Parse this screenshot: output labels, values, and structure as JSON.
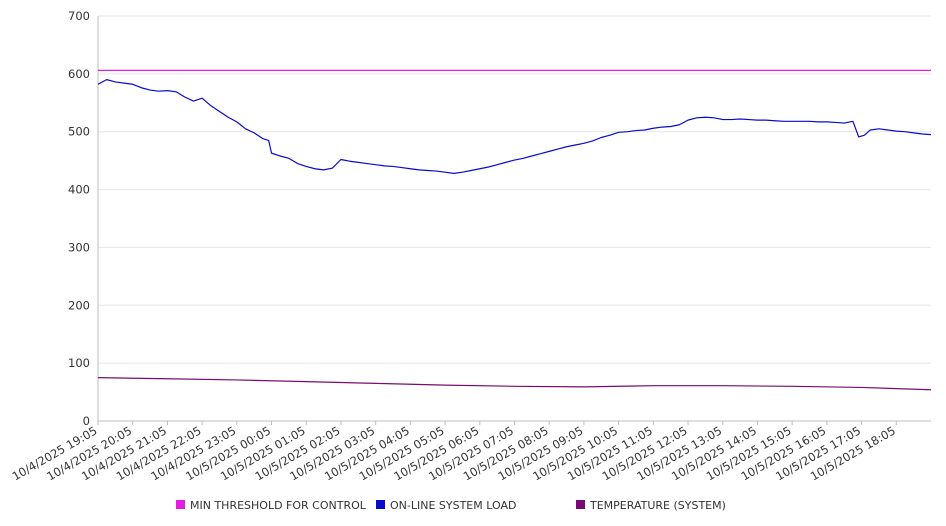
{
  "chart_data": {
    "type": "line",
    "ylim": [
      0,
      700
    ],
    "yticks": [
      0,
      100,
      200,
      300,
      400,
      500,
      600,
      700
    ],
    "grid": true,
    "legend_position": "bottom",
    "xlim": [
      "10/4/2025 19:05",
      "10/5/2025 19:05"
    ],
    "xtick_labels": [
      "10/4/2025 19:05",
      "10/4/2025 20:05",
      "10/4/2025 21:05",
      "10/4/2025 22:05",
      "10/4/2025 23:05",
      "10/5/2025 00:05",
      "10/5/2025 01:05",
      "10/5/2025 02:05",
      "10/5/2025 03:05",
      "10/5/2025 04:05",
      "10/5/2025 05:05",
      "10/5/2025 06:05",
      "10/5/2025 07:05",
      "10/5/2025 08:05",
      "10/5/2025 09:05",
      "10/5/2025 10:05",
      "10/5/2025 11:05",
      "10/5/2025 12:05",
      "10/5/2025 13:05",
      "10/5/2025 14:05",
      "10/5/2025 15:05",
      "10/5/2025 16:05",
      "10/5/2025 17:05",
      "10/5/2025 18:05"
    ],
    "series": [
      {
        "name": "MIN THRESHOLD FOR CONTROL",
        "color": "#e21ee0",
        "points": [
          [
            "10/4/2025 19:05",
            606
          ],
          [
            "10/5/2025 19:05",
            606
          ]
        ]
      },
      {
        "name": "ON-LINE SYSTEM LOAD",
        "color": "#0a0acd",
        "points": [
          [
            "10/4/2025 19:05",
            582
          ],
          [
            "10/4/2025 19:20",
            590
          ],
          [
            "10/4/2025 19:35",
            586
          ],
          [
            "10/4/2025 19:50",
            584
          ],
          [
            "10/4/2025 20:05",
            582
          ],
          [
            "10/4/2025 20:20",
            576
          ],
          [
            "10/4/2025 20:35",
            572
          ],
          [
            "10/4/2025 20:50",
            570
          ],
          [
            "10/4/2025 21:05",
            571
          ],
          [
            "10/4/2025 21:20",
            569
          ],
          [
            "10/4/2025 21:35",
            560
          ],
          [
            "10/4/2025 21:50",
            553
          ],
          [
            "10/4/2025 22:05",
            558
          ],
          [
            "10/4/2025 22:20",
            545
          ],
          [
            "10/4/2025 22:35",
            535
          ],
          [
            "10/4/2025 22:50",
            525
          ],
          [
            "10/4/2025 23:05",
            517
          ],
          [
            "10/4/2025 23:20",
            505
          ],
          [
            "10/4/2025 23:35",
            498
          ],
          [
            "10/4/2025 23:50",
            488
          ],
          [
            "10/5/2025 00:00",
            485
          ],
          [
            "10/5/2025 00:05",
            463
          ],
          [
            "10/5/2025 00:20",
            458
          ],
          [
            "10/5/2025 00:35",
            454
          ],
          [
            "10/5/2025 00:50",
            445
          ],
          [
            "10/5/2025 01:05",
            440
          ],
          [
            "10/5/2025 01:20",
            436
          ],
          [
            "10/5/2025 01:35",
            434
          ],
          [
            "10/5/2025 01:50",
            437
          ],
          [
            "10/5/2025 02:05",
            452
          ],
          [
            "10/5/2025 02:20",
            449
          ],
          [
            "10/5/2025 02:35",
            447
          ],
          [
            "10/5/2025 02:50",
            445
          ],
          [
            "10/5/2025 03:05",
            443
          ],
          [
            "10/5/2025 03:20",
            441
          ],
          [
            "10/5/2025 03:35",
            440
          ],
          [
            "10/5/2025 03:50",
            438
          ],
          [
            "10/5/2025 04:05",
            436
          ],
          [
            "10/5/2025 04:20",
            434
          ],
          [
            "10/5/2025 04:35",
            433
          ],
          [
            "10/5/2025 04:50",
            432
          ],
          [
            "10/5/2025 05:05",
            430
          ],
          [
            "10/5/2025 05:20",
            428
          ],
          [
            "10/5/2025 05:35",
            430
          ],
          [
            "10/5/2025 05:50",
            433
          ],
          [
            "10/5/2025 06:05",
            436
          ],
          [
            "10/5/2025 06:20",
            439
          ],
          [
            "10/5/2025 06:35",
            443
          ],
          [
            "10/5/2025 06:50",
            447
          ],
          [
            "10/5/2025 07:05",
            451
          ],
          [
            "10/5/2025 07:20",
            454
          ],
          [
            "10/5/2025 07:35",
            458
          ],
          [
            "10/5/2025 07:50",
            462
          ],
          [
            "10/5/2025 08:05",
            466
          ],
          [
            "10/5/2025 08:20",
            470
          ],
          [
            "10/5/2025 08:35",
            474
          ],
          [
            "10/5/2025 08:50",
            477
          ],
          [
            "10/5/2025 09:05",
            480
          ],
          [
            "10/5/2025 09:20",
            484
          ],
          [
            "10/5/2025 09:35",
            490
          ],
          [
            "10/5/2025 09:50",
            494
          ],
          [
            "10/5/2025 10:05",
            499
          ],
          [
            "10/5/2025 10:20",
            500
          ],
          [
            "10/5/2025 10:35",
            502
          ],
          [
            "10/5/2025 10:50",
            503
          ],
          [
            "10/5/2025 11:05",
            506
          ],
          [
            "10/5/2025 11:20",
            508
          ],
          [
            "10/5/2025 11:35",
            509
          ],
          [
            "10/5/2025 11:50",
            512
          ],
          [
            "10/5/2025 12:05",
            520
          ],
          [
            "10/5/2025 12:20",
            524
          ],
          [
            "10/5/2025 12:35",
            525
          ],
          [
            "10/5/2025 12:50",
            524
          ],
          [
            "10/5/2025 13:05",
            521
          ],
          [
            "10/5/2025 13:20",
            521
          ],
          [
            "10/5/2025 13:35",
            522
          ],
          [
            "10/5/2025 13:50",
            521
          ],
          [
            "10/5/2025 14:05",
            520
          ],
          [
            "10/5/2025 14:20",
            520
          ],
          [
            "10/5/2025 14:35",
            519
          ],
          [
            "10/5/2025 14:50",
            518
          ],
          [
            "10/5/2025 15:05",
            518
          ],
          [
            "10/5/2025 15:20",
            518
          ],
          [
            "10/5/2025 15:35",
            518
          ],
          [
            "10/5/2025 15:50",
            517
          ],
          [
            "10/5/2025 16:05",
            517
          ],
          [
            "10/5/2025 16:20",
            516
          ],
          [
            "10/5/2025 16:35",
            515
          ],
          [
            "10/5/2025 16:50",
            518
          ],
          [
            "10/5/2025 17:00",
            491
          ],
          [
            "10/5/2025 17:10",
            494
          ],
          [
            "10/5/2025 17:20",
            503
          ],
          [
            "10/5/2025 17:35",
            505
          ],
          [
            "10/5/2025 17:50",
            503
          ],
          [
            "10/5/2025 18:05",
            501
          ],
          [
            "10/5/2025 18:20",
            500
          ],
          [
            "10/5/2025 18:35",
            498
          ],
          [
            "10/5/2025 18:50",
            496
          ],
          [
            "10/5/2025 19:05",
            495
          ]
        ]
      },
      {
        "name": "TEMPERATURE (SYSTEM)",
        "color": "#7a0a73",
        "points": [
          [
            "10/4/2025 19:05",
            75
          ],
          [
            "10/4/2025 21:05",
            73
          ],
          [
            "10/4/2025 23:05",
            71
          ],
          [
            "10/5/2025 01:05",
            68
          ],
          [
            "10/5/2025 03:05",
            65
          ],
          [
            "10/5/2025 05:05",
            62
          ],
          [
            "10/5/2025 07:05",
            60
          ],
          [
            "10/5/2025 09:05",
            59
          ],
          [
            "10/5/2025 11:05",
            61
          ],
          [
            "10/5/2025 13:05",
            61
          ],
          [
            "10/5/2025 15:05",
            60
          ],
          [
            "10/5/2025 17:05",
            58
          ],
          [
            "10/5/2025 18:05",
            56
          ],
          [
            "10/5/2025 19:05",
            54
          ]
        ]
      }
    ]
  }
}
